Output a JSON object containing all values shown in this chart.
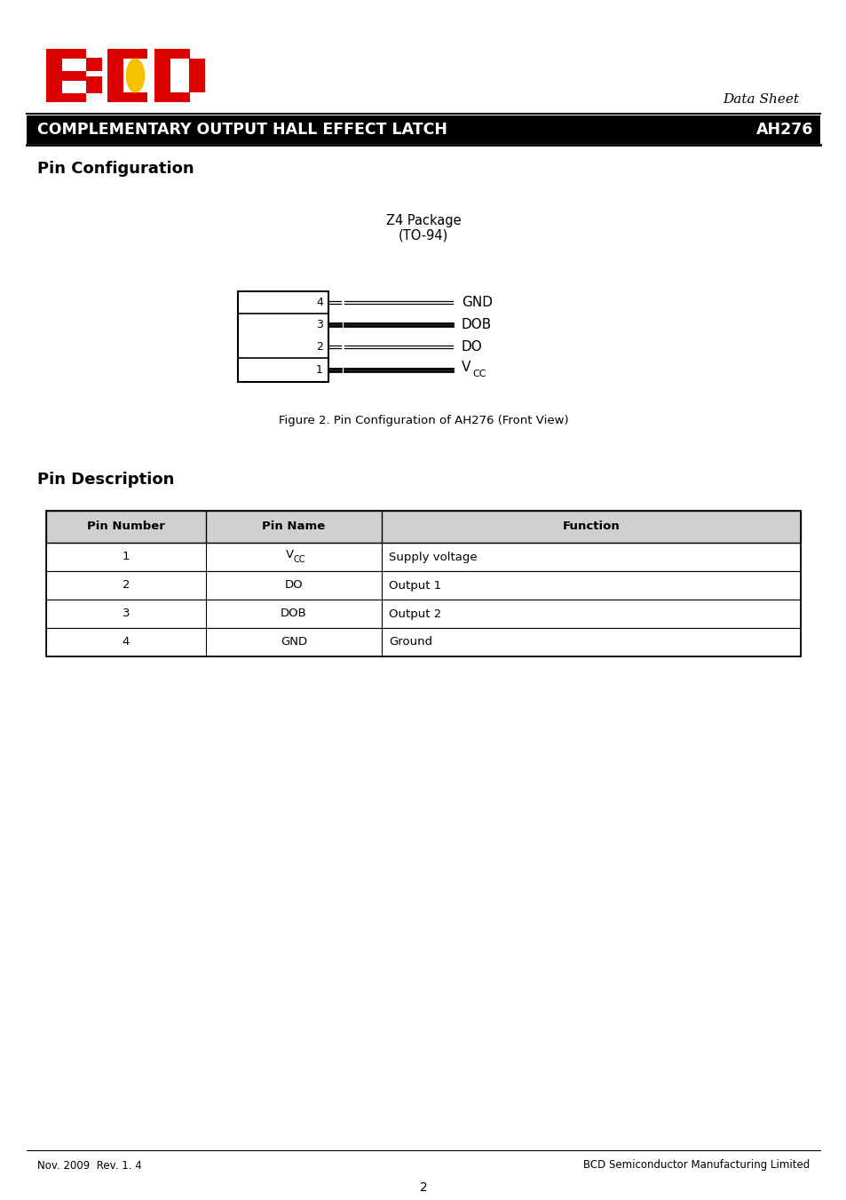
{
  "page_bg": "#ffffff",
  "header_bar_color": "#000000",
  "header_text": "COMPLEMENTARY OUTPUT HALL EFFECT LATCH",
  "header_part": "AH276",
  "datasheet_label": "Data Sheet",
  "pin_config_title": "Pin Configuration",
  "package_label_line1": "Z4 Package",
  "package_label_line2": "(TO-94)",
  "figure_caption": "Figure 2. Pin Configuration of AH276 (Front View)",
  "pin_desc_title": "Pin Description",
  "table_headers": [
    "Pin Number",
    "Pin Name",
    "Function"
  ],
  "table_rows": [
    [
      "1",
      "V_CC",
      "Supply voltage"
    ],
    [
      "2",
      "DO",
      "Output 1"
    ],
    [
      "3",
      "DOB",
      "Output 2"
    ],
    [
      "4",
      "GND",
      "Ground"
    ]
  ],
  "footer_left": "Nov. 2009  Rev. 1. 4",
  "footer_right": "BCD Semiconductor Manufacturing Limited",
  "page_number": "2",
  "pin_labels": [
    "GND",
    "DOB",
    "DO",
    "V_CC"
  ],
  "pin_numbers": [
    "4",
    "3",
    "2",
    "1"
  ],
  "logo_b_color": "#dd0000",
  "logo_c_color": "#dd0000",
  "logo_d_color": "#dd0000",
  "logo_dot_color": "#f5c200"
}
